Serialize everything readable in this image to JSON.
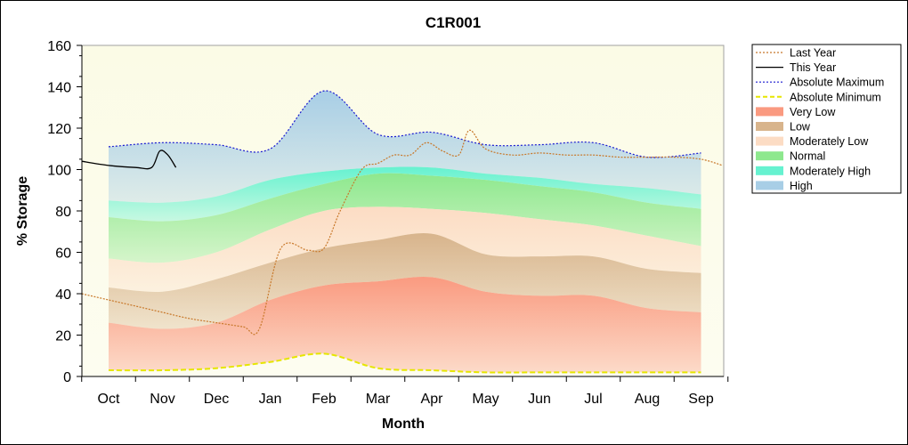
{
  "chart_data": {
    "type": "area",
    "title": "C1R001",
    "xlabel": "Month",
    "ylabel": "% Storage",
    "ylim": [
      0,
      160
    ],
    "yticks": [
      0,
      20,
      40,
      60,
      80,
      100,
      120,
      140,
      160
    ],
    "grid": false,
    "legend_position": "right",
    "categories": [
      "Oct",
      "Nov",
      "Dec",
      "Jan",
      "Feb",
      "Mar",
      "Apr",
      "May",
      "Jun",
      "Jul",
      "Aug",
      "Sep"
    ],
    "band_x": [
      0,
      1,
      2,
      3,
      4,
      5,
      6,
      7,
      8,
      9,
      10,
      11
    ],
    "bands": {
      "very_low": [
        26,
        23,
        26,
        37,
        44,
        46,
        48,
        41,
        39,
        39,
        33,
        31
      ],
      "low": [
        43,
        41,
        47,
        55,
        62,
        66,
        69,
        59,
        58,
        58,
        52,
        50
      ],
      "moderately_low": [
        57,
        55,
        60,
        71,
        80,
        82,
        81,
        79,
        76,
        73,
        68,
        63
      ],
      "normal": [
        77,
        75,
        78,
        86,
        93,
        98,
        97,
        95,
        92,
        89,
        84,
        81
      ],
      "moderately_high": [
        85,
        84,
        87,
        95,
        99,
        101,
        101,
        98,
        96,
        93,
        91,
        88
      ],
      "absolute_maximum": [
        111,
        113,
        112,
        110,
        138,
        117,
        118,
        112,
        112,
        113,
        106,
        108
      ],
      "absolute_minimum": [
        3,
        3,
        4,
        7,
        11,
        4,
        3,
        2,
        2,
        2,
        2,
        2
      ]
    },
    "last_year": {
      "x": [
        -0.5,
        0,
        0.5,
        1,
        1.5,
        2,
        2.5,
        2.8,
        3.2,
        3.7,
        4,
        4.3,
        4.7,
        5,
        5.3,
        5.6,
        5.9,
        6.2,
        6.5,
        6.7,
        7,
        7.5,
        8,
        8.5,
        9,
        9.5,
        10,
        10.5,
        11,
        11.4
      ],
      "y": [
        40,
        37,
        34,
        31,
        28,
        26,
        24,
        23,
        62,
        61,
        62,
        80,
        100,
        103,
        107,
        107,
        113,
        109,
        107,
        119,
        110,
        107,
        108,
        107,
        107,
        106,
        106,
        106,
        105,
        102
      ]
    },
    "this_year": {
      "x": [
        -0.5,
        0,
        0.5,
        0.8,
        0.95,
        1.1,
        1.25
      ],
      "y": [
        104,
        102,
        101,
        101,
        109,
        107,
        101
      ]
    },
    "legend": [
      {
        "key": "last_year",
        "label": "Last Year",
        "color": "#c8782a",
        "style": "line-dotted"
      },
      {
        "key": "this_year",
        "label": "This Year",
        "color": "#000000",
        "style": "line"
      },
      {
        "key": "absolute_maximum",
        "label": "Absolute Maximum",
        "color": "#1a1ad0",
        "style": "line-dotted"
      },
      {
        "key": "absolute_minimum",
        "label": "Absolute Minimum",
        "color": "#e6e600",
        "style": "line-dashed"
      },
      {
        "key": "very_low",
        "label": "Very Low",
        "color": "#fa9a80",
        "style": "fill"
      },
      {
        "key": "low",
        "label": "Low",
        "color": "#d8b48c",
        "style": "fill"
      },
      {
        "key": "moderately_low",
        "label": "Moderately Low",
        "color": "#fcdcc4",
        "style": "fill"
      },
      {
        "key": "normal",
        "label": "Normal",
        "color": "#8ee88e",
        "style": "fill"
      },
      {
        "key": "moderately_high",
        "label": "Moderately High",
        "color": "#66f2d0",
        "style": "fill"
      },
      {
        "key": "high",
        "label": "High",
        "color": "#a8cee6",
        "style": "fill"
      }
    ]
  }
}
